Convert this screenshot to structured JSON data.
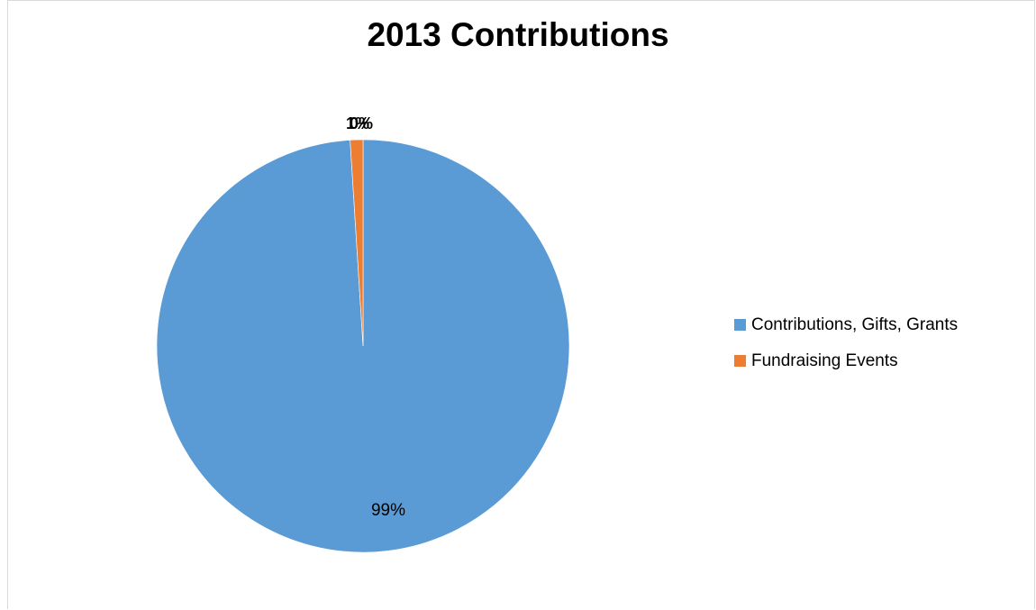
{
  "chart_data": {
    "type": "pie",
    "title": "2013 Contributions",
    "categories": [
      "Contributions, Gifts, Grants",
      "Fundraising Events"
    ],
    "values": [
      99,
      1
    ],
    "labels": [
      "99%",
      "1%"
    ],
    "extra_labels": [
      "0%"
    ],
    "colors": [
      "#5b9bd5",
      "#ed7d31"
    ],
    "legend_position": "right"
  }
}
